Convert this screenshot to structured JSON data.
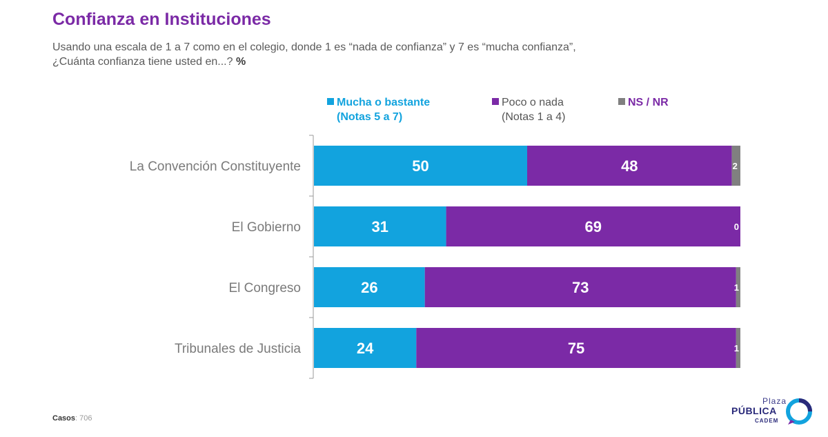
{
  "title": "Confianza en Instituciones",
  "subtitle_line1": "Usando una escala de 1 a 7 como en el colegio, donde 1 es “nada de confianza” y 7 es “mucha confianza”,",
  "subtitle_line2": "¿Cuánta confianza tiene usted en...?",
  "subtitle_unit": "%",
  "legend": {
    "mucha_line1": "Mucha o bastante",
    "mucha_line2": "(Notas 5 a 7)",
    "poco_line1": "Poco o nada",
    "poco_line2": "(Notas 1 a 4)",
    "ns": "NS / NR"
  },
  "footer": {
    "label": "Casos",
    "value": ": 706"
  },
  "logo": {
    "line1": "Plaza",
    "line2": "PÚBLICA",
    "line3": "CADEM"
  },
  "colors": {
    "mucha": "#12a3de",
    "poco": "#7b2aa6",
    "ns": "#808080",
    "title": "#7b2aa6"
  },
  "chart_data": {
    "type": "bar",
    "orientation": "horizontal",
    "stacked": true,
    "categories": [
      "La Convención Constituyente",
      "El Gobierno",
      "El Congreso",
      "Tribunales de Justicia"
    ],
    "series": [
      {
        "name": "Mucha o bastante (Notas 5 a 7)",
        "color": "#12a3de",
        "values": [
          50,
          31,
          26,
          24
        ]
      },
      {
        "name": "Poco o nada (Notas 1 a 4)",
        "color": "#7b2aa6",
        "values": [
          48,
          69,
          73,
          75
        ]
      },
      {
        "name": "NS / NR",
        "color": "#808080",
        "values": [
          2,
          0,
          1,
          1
        ]
      }
    ],
    "xlim": [
      0,
      100
    ],
    "grid": false,
    "legend_position": "top"
  }
}
